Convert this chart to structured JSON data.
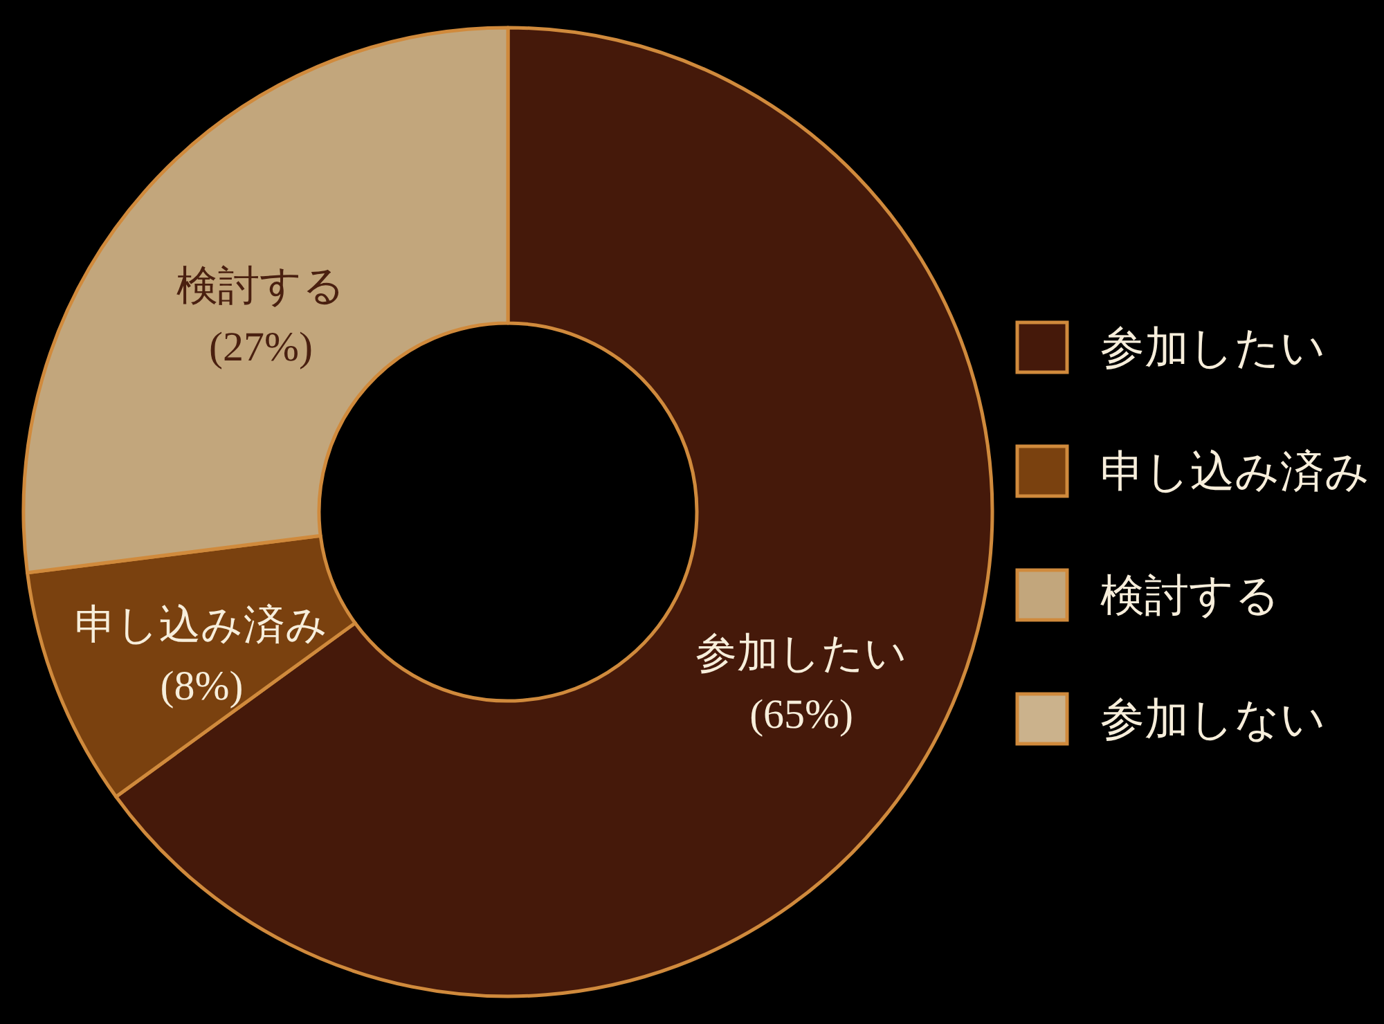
{
  "chart_data": {
    "type": "donut",
    "categories": [
      "参加したい",
      "申し込み済み",
      "検討する",
      "参加しない"
    ],
    "values": [
      65,
      8,
      27,
      0
    ],
    "colors": [
      "#45190a",
      "#7a410f",
      "#c2a67c",
      "#cbb28c"
    ],
    "value_labels": [
      "(65%)",
      "(8%)",
      "(27%)",
      null
    ],
    "legend": "right"
  }
}
